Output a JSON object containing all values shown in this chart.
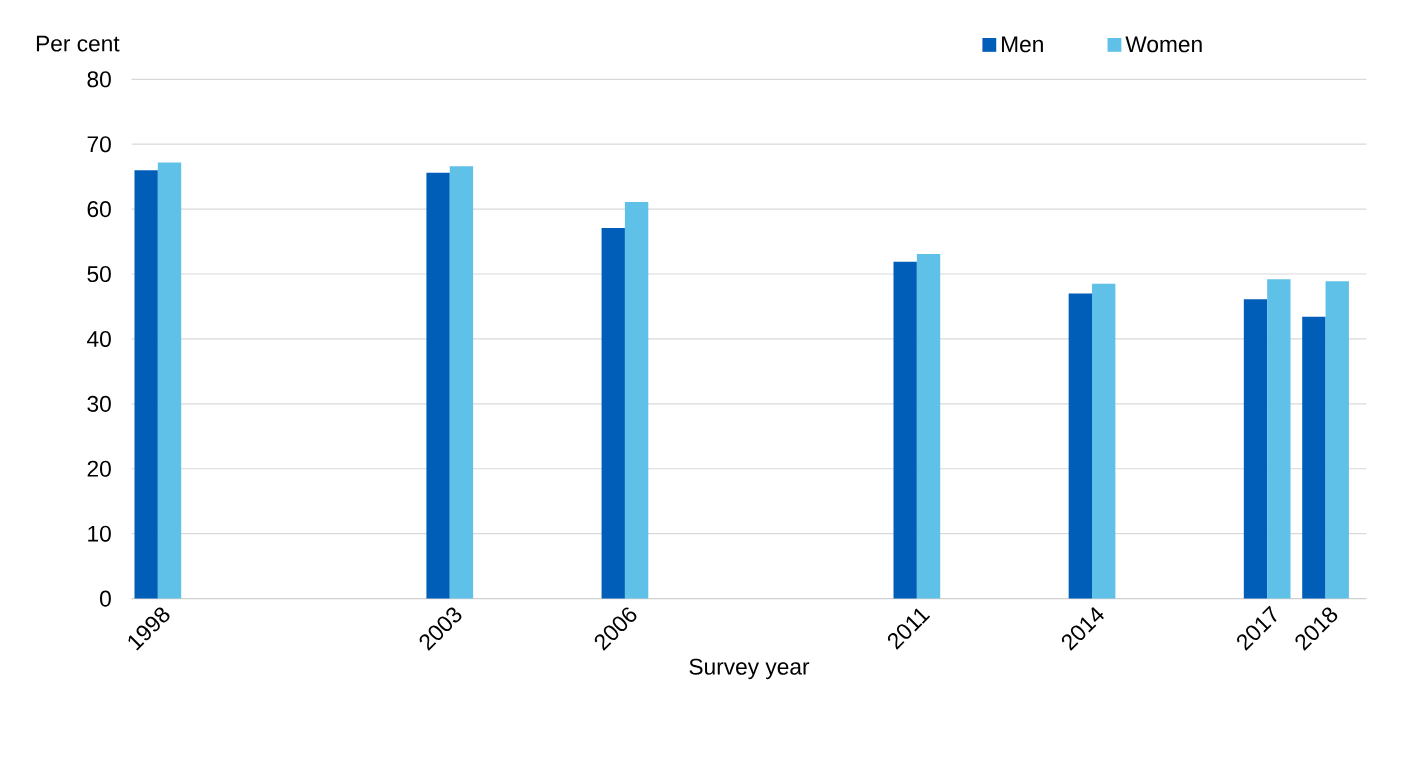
{
  "chart_data": {
    "type": "bar",
    "xlabel": "Survey year",
    "ylabel": "Per cent",
    "x": [
      1998,
      2003,
      2006,
      2011,
      2014,
      2017,
      2018
    ],
    "xlim": [
      1997.55,
      2018.7
    ],
    "xticks": [
      1998,
      2003,
      2006,
      2011,
      2014,
      2017,
      2018
    ],
    "ylim": [
      0,
      80
    ],
    "yticks": [
      0,
      10,
      20,
      30,
      40,
      50,
      60,
      70,
      80
    ],
    "grid": "y",
    "legend": "top right",
    "series": [
      {
        "name": "Men",
        "color": "#005eb8",
        "values": [
          66.0,
          65.6,
          57.1,
          51.9,
          47.0,
          46.1,
          43.4
        ]
      },
      {
        "name": "Women",
        "color": "#5fc0e8",
        "values": [
          67.2,
          66.6,
          61.1,
          53.1,
          48.5,
          49.2,
          48.9
        ]
      }
    ]
  }
}
